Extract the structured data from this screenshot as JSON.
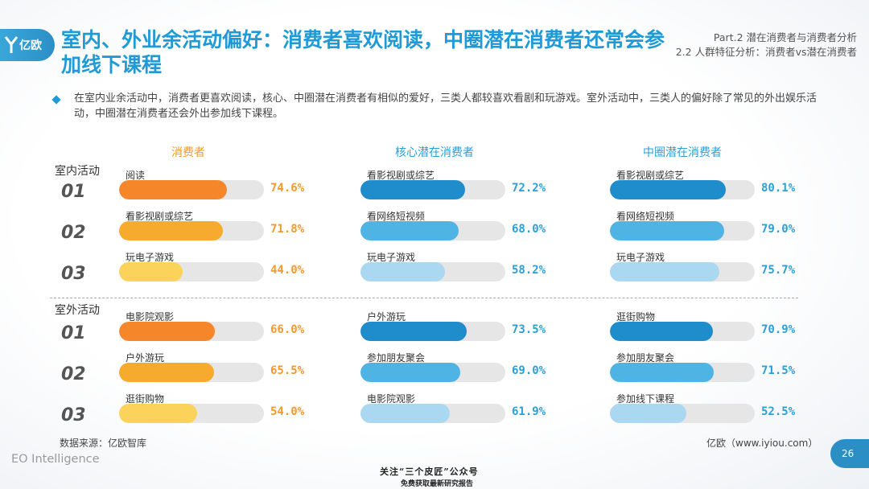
{
  "header": {
    "logo_text": "亿欧",
    "title": "室内、外业余活动偏好：消费者喜欢阅读，中圈潜在消费者还常会参加线下课程",
    "part_line1": "Part.2 潜在消费者与消费者分析",
    "part_line2": "2.2 人群特征分析：消费者vs潜在消费者"
  },
  "description": "在室内业余活动中，消费者更喜欢阅读，核心、中圈潜在消费者有相似的爱好，三类人都较喜欢看剧和玩游戏。室外活动中，三类人的偏好除了常见的外出娱乐活动，中圈潜在消费者还会外出参加线下课程。",
  "sections": {
    "indoor": "室内活动",
    "outdoor": "室外活动"
  },
  "ranks": [
    "01",
    "02",
    "03"
  ],
  "chart_data": {
    "type": "bar",
    "title": "",
    "xlim": [
      0,
      100
    ],
    "groups": [
      {
        "name": "消费者",
        "color": "#f39a2b",
        "indoor": [
          {
            "label": "阅读",
            "value": 74.6,
            "text": "74.6%"
          },
          {
            "label": "看影视剧或综艺",
            "value": 71.8,
            "text": "71.8%"
          },
          {
            "label": "玩电子游戏",
            "value": 44.0,
            "text": "44.0%"
          }
        ],
        "outdoor": [
          {
            "label": "电影院观影",
            "value": 66.0,
            "text": "66.0%"
          },
          {
            "label": "户外游玩",
            "value": 65.5,
            "text": "65.5%"
          },
          {
            "label": "逛街购物",
            "value": 54.0,
            "text": "54.0%"
          }
        ]
      },
      {
        "name": "核心潜在消费者",
        "color": "#2b8fc6",
        "indoor": [
          {
            "label": "看影视剧或综艺",
            "value": 72.2,
            "text": "72.2%"
          },
          {
            "label": "看网络短视频",
            "value": 68.0,
            "text": "68.0%"
          },
          {
            "label": "玩电子游戏",
            "value": 58.2,
            "text": "58.2%"
          }
        ],
        "outdoor": [
          {
            "label": "户外游玩",
            "value": 73.5,
            "text": "73.5%"
          },
          {
            "label": "参加朋友聚会",
            "value": 69.0,
            "text": "69.0%"
          },
          {
            "label": "电影院观影",
            "value": 61.9,
            "text": "61.9%"
          }
        ]
      },
      {
        "name": "中圈潜在消费者",
        "color": "#2b8fc6",
        "indoor": [
          {
            "label": "看影视剧或综艺",
            "value": 80.1,
            "text": "80.1%"
          },
          {
            "label": "看网络短视频",
            "value": 79.0,
            "text": "79.0%"
          },
          {
            "label": "玩电子游戏",
            "value": 75.7,
            "text": "75.7%"
          }
        ],
        "outdoor": [
          {
            "label": "逛街购物",
            "value": 70.9,
            "text": "70.9%"
          },
          {
            "label": "参加朋友聚会",
            "value": 71.5,
            "text": "71.5%"
          },
          {
            "label": "参加线下课程",
            "value": 52.5,
            "text": "52.5%"
          }
        ]
      }
    ],
    "colors": {
      "orange": [
        "#f5862a",
        "#f7ab2e",
        "#fbd35a"
      ],
      "blue": [
        "#1f8ccc",
        "#4fb3e4",
        "#a9d8f0"
      ],
      "orange_text": "#f39a2b",
      "blue_text": "#2b9fd9"
    }
  },
  "footer": {
    "source": "数据来源：亿欧智库",
    "credit": "亿欧（www.iyiou.com）",
    "brand": "EO Intelligence",
    "page": "26",
    "wm_line1": "关注“三个皮匠”公众号",
    "wm_line2": "免费获取最新研究报告"
  }
}
